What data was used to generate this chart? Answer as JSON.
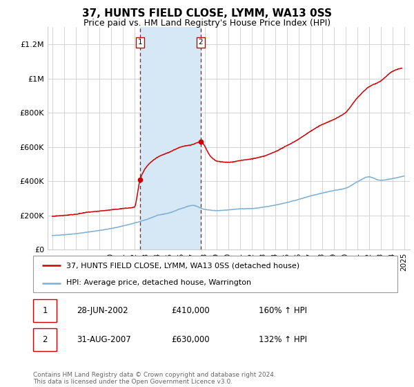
{
  "title": "37, HUNTS FIELD CLOSE, LYMM, WA13 0SS",
  "subtitle": "Price paid vs. HM Land Registry's House Price Index (HPI)",
  "red_label": "37, HUNTS FIELD CLOSE, LYMM, WA13 0SS (detached house)",
  "blue_label": "HPI: Average price, detached house, Warrington",
  "footnote": "Contains HM Land Registry data © Crown copyright and database right 2024.\nThis data is licensed under the Open Government Licence v3.0.",
  "sale1_date": "28-JUN-2002",
  "sale1_price": "£410,000",
  "sale1_hpi": "160% ↑ HPI",
  "sale2_date": "31-AUG-2007",
  "sale2_price": "£630,000",
  "sale2_hpi": "132% ↑ HPI",
  "ylim": [
    0,
    1300000
  ],
  "yticks": [
    0,
    200000,
    400000,
    600000,
    800000,
    1000000,
    1200000
  ],
  "ytick_labels": [
    "£0",
    "£200K",
    "£400K",
    "£600K",
    "£800K",
    "£1M",
    "£1.2M"
  ],
  "sale1_x": 2002.49,
  "sale2_x": 2007.66,
  "red_color": "#cc0000",
  "blue_color": "#7bafd4",
  "shade_color": "#d6e8f5",
  "grid_color": "#cccccc",
  "title_fontsize": 11,
  "subtitle_fontsize": 9,
  "tick_fontsize": 7.5,
  "ytick_fontsize": 8,
  "legend_fontsize": 8,
  "table_fontsize": 8.5,
  "footnote_fontsize": 6.5
}
